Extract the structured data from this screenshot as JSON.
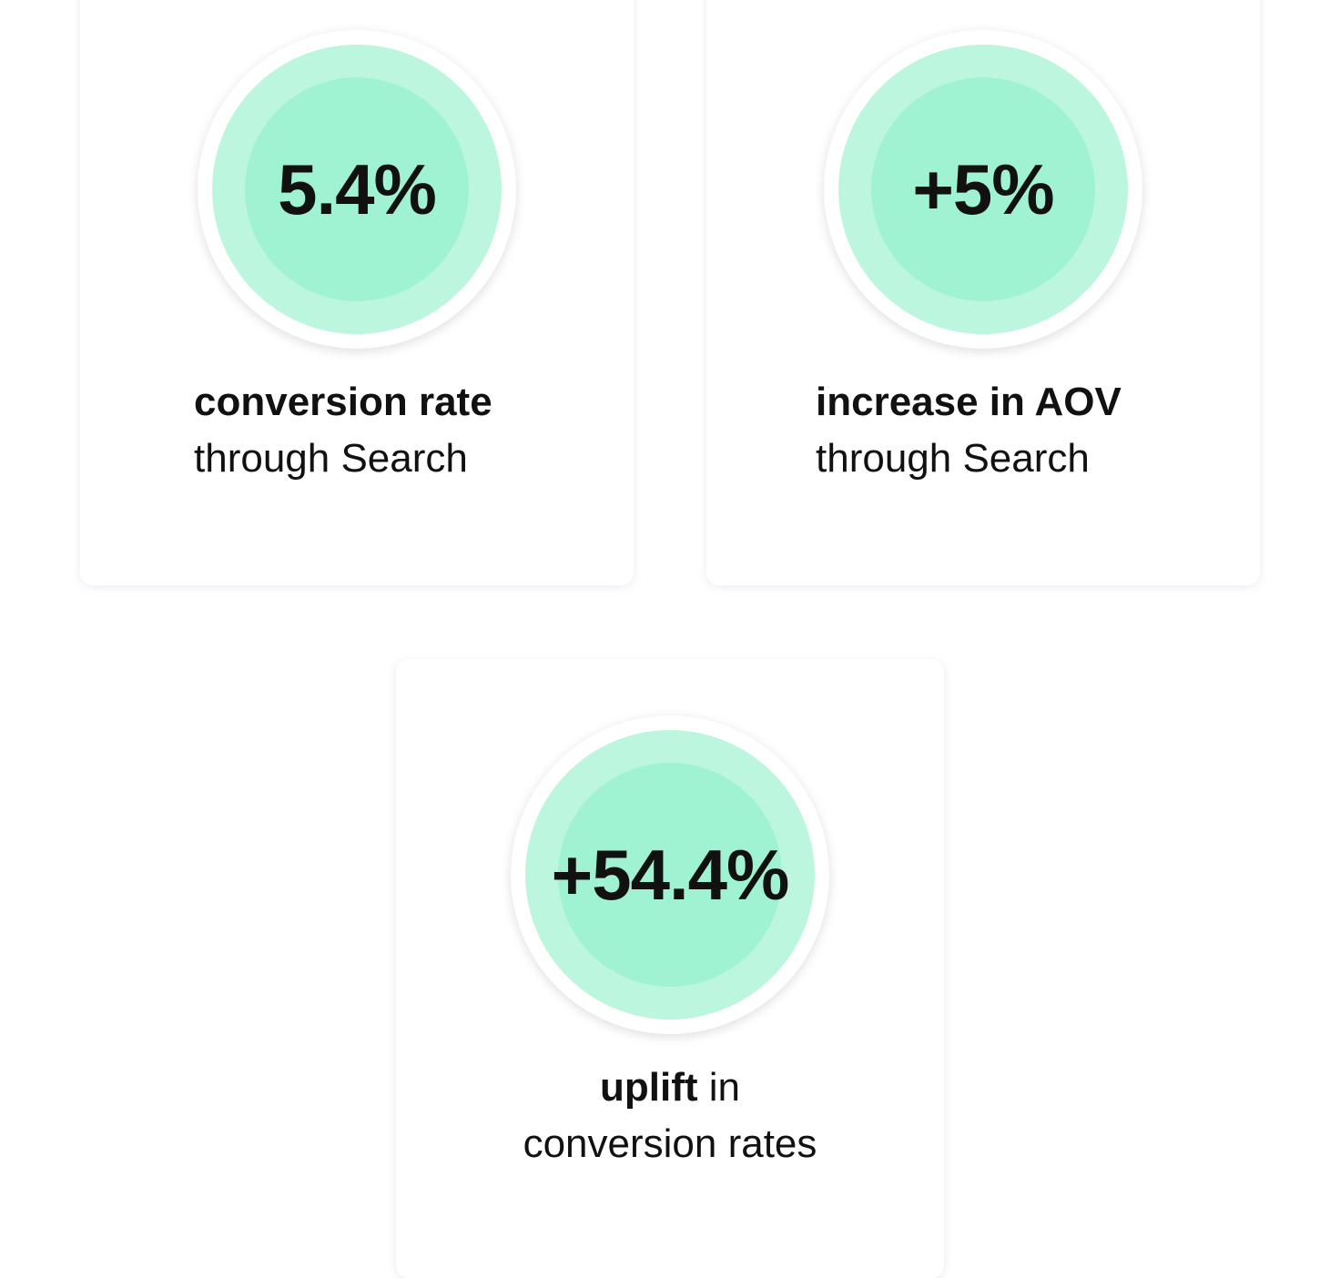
{
  "cards": [
    {
      "value": "5.4%",
      "lines": [
        {
          "bold": "conversion rate"
        },
        {
          "text": "through Search"
        }
      ]
    },
    {
      "value": "+5%",
      "lines": [
        {
          "bold": "increase in AOV"
        },
        {
          "text": "through Search"
        }
      ]
    },
    {
      "value": "+54.4%",
      "lines": [
        {
          "bold": "uplift",
          "text": "in"
        },
        {
          "text": "conversion rates"
        }
      ]
    }
  ]
}
